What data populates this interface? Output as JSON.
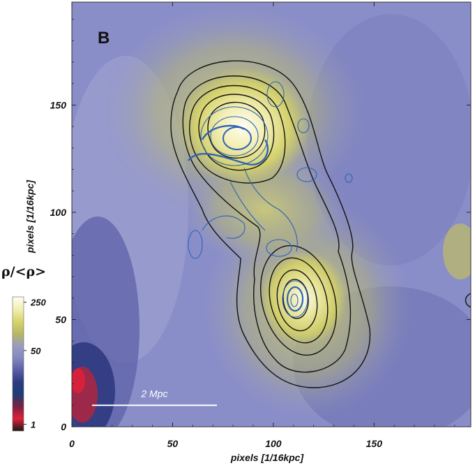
{
  "chart_data": {
    "type": "heatmap",
    "panel_label": "B",
    "xlabel": "pixels [1/16kpc]",
    "ylabel": "pixels [1/16kpc]",
    "xlim": [
      0,
      198
    ],
    "ylim": [
      0,
      198
    ],
    "xticks": [
      "0",
      "50",
      "100",
      "150"
    ],
    "yticks": [
      "0",
      "50",
      "100",
      "150"
    ],
    "colorbar": {
      "title": "ρ/<ρ>",
      "ticks": [
        "250",
        "50",
        "1"
      ],
      "colors": [
        "#fdfdf2",
        "#f3efb2",
        "#d7d46e",
        "#b8b860",
        "#9a9cbe",
        "#8488c0",
        "#5a5ea6",
        "#2d3a80",
        "#1d3e74",
        "#7a2040",
        "#e0203a",
        "#1a1a1a"
      ]
    },
    "scale_bar": {
      "label": "2 Mpc",
      "x_start": 10,
      "x_end": 72,
      "y": 10
    },
    "clumps": [
      {
        "x": 85,
        "y": 140
      },
      {
        "x": 115,
        "y": 60
      }
    ],
    "black_contour_color": "#111111",
    "blue_contour_color": "#2f62b8"
  }
}
